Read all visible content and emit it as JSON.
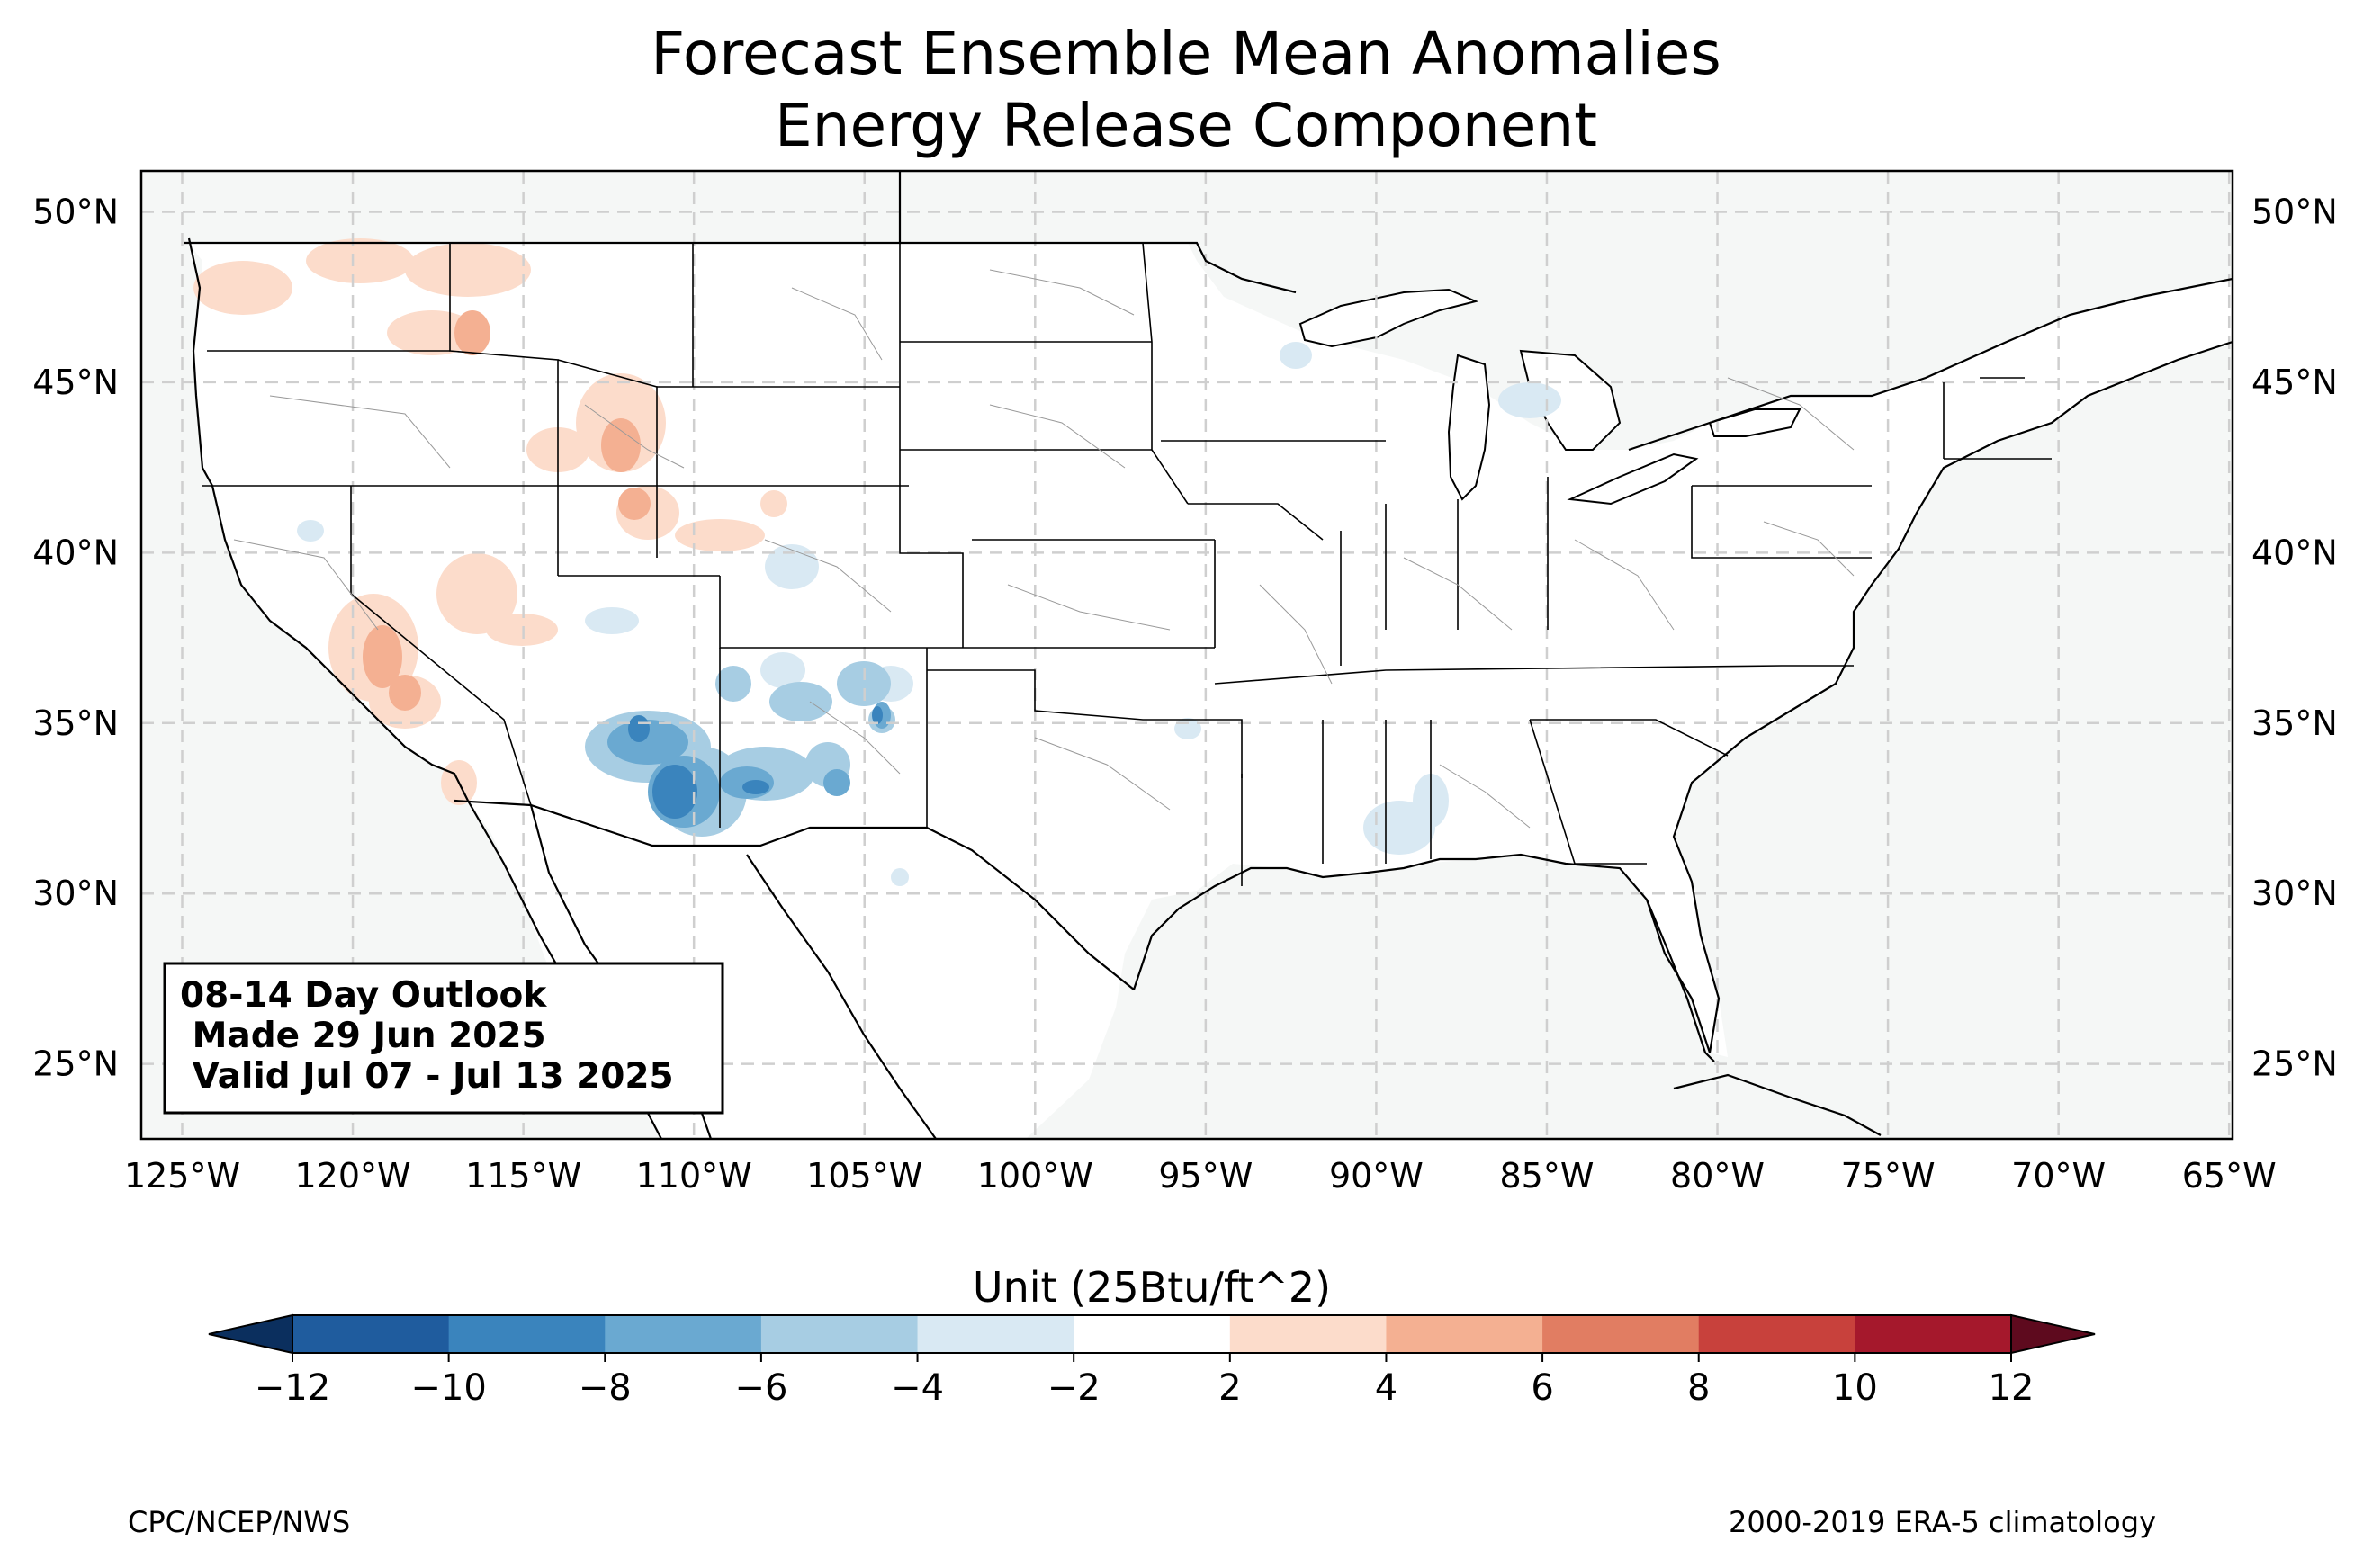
{
  "title": {
    "line1": "Forecast Ensemble Mean Anomalies",
    "line2": "Energy Release Component"
  },
  "map": {
    "lon_ticks": [
      "125°W",
      "120°W",
      "115°W",
      "110°W",
      "105°W",
      "100°W",
      "95°W",
      "90°W",
      "85°W",
      "80°W",
      "75°W",
      "70°W",
      "65°W"
    ],
    "lat_ticks": [
      "50°N",
      "45°N",
      "40°N",
      "35°N",
      "30°N",
      "25°N"
    ],
    "extent": {
      "lon": [
        -126.2,
        -64.9
      ],
      "lat": [
        22.8,
        51.2
      ]
    },
    "land_color": "#f5f7f6",
    "grid": true
  },
  "info_box": {
    "line1": "08-14 Day Outlook",
    "line2": " Made 29 Jun 2025",
    "line3": " Valid Jul 07 - Jul 13 2025"
  },
  "colorbar": {
    "label": "Unit (25Btu/ft^2)",
    "ticks": [
      "−12",
      "−10",
      "−8",
      "−6",
      "−4",
      "−2",
      "2",
      "4",
      "6",
      "8",
      "10",
      "12"
    ],
    "colors": [
      "#1f5c9e",
      "#3a84bd",
      "#6aa9d1",
      "#a7cde3",
      "#d9e9f3",
      "#ffffff",
      "#fcdccb",
      "#f4b092",
      "#e17d62",
      "#c8413c",
      "#a5182c"
    ],
    "under_color": "#0b2f5e",
    "over_color": "#5e0a1e"
  },
  "footer": {
    "left": "CPC/NCEP/NWS",
    "right": "2000-2019 ERA-5 climatology"
  }
}
